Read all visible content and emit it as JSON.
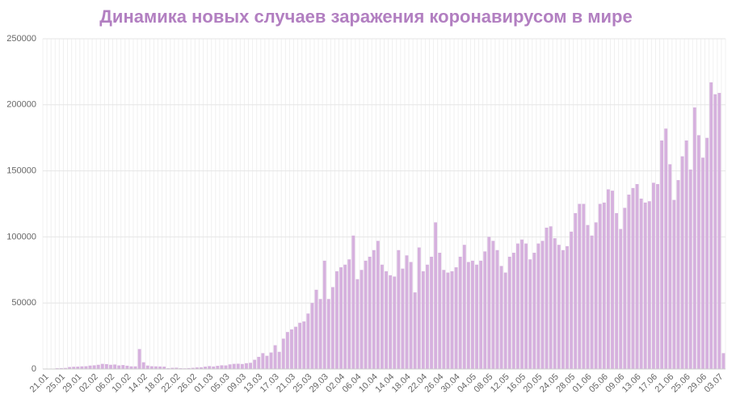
{
  "chart_data": {
    "type": "bar",
    "title": "Динамика новых случаев заражения коронавирусом в мире",
    "color": "#d6b1de",
    "ylim": [
      0,
      250000
    ],
    "yticks": [
      0,
      50000,
      100000,
      150000,
      200000,
      250000
    ],
    "grid": true,
    "categories": [
      "21.01",
      null,
      null,
      null,
      "25.01",
      null,
      null,
      null,
      "29.01",
      null,
      null,
      null,
      "02.02",
      null,
      null,
      null,
      "06.02",
      null,
      null,
      null,
      "10.02",
      null,
      null,
      null,
      "14.02",
      null,
      null,
      null,
      "18.02",
      null,
      null,
      null,
      "22.02",
      null,
      null,
      null,
      "26.02",
      null,
      null,
      null,
      "01.03",
      null,
      null,
      null,
      "05.03",
      null,
      null,
      null,
      "09.03",
      null,
      null,
      null,
      "13.03",
      null,
      null,
      null,
      "17.03",
      null,
      null,
      null,
      "21.03",
      null,
      null,
      null,
      "25.03",
      null,
      null,
      null,
      "29.03",
      null,
      null,
      null,
      "02.04",
      null,
      null,
      null,
      "06.04",
      null,
      null,
      null,
      "10.04",
      null,
      null,
      null,
      "14.04",
      null,
      null,
      null,
      "18.04",
      null,
      null,
      null,
      "22.04",
      null,
      null,
      null,
      "26.04",
      null,
      null,
      null,
      "30.04",
      null,
      null,
      null,
      "04.05",
      null,
      null,
      null,
      "08.05",
      null,
      null,
      null,
      "12.05",
      null,
      null,
      null,
      "16.05",
      null,
      null,
      null,
      "20.05",
      null,
      null,
      null,
      "24.05",
      null,
      null,
      null,
      "28.05",
      null,
      null,
      null,
      "01.06",
      null,
      null,
      null,
      "05.06",
      null,
      null,
      null,
      "09.06",
      null,
      null,
      null,
      "13.06",
      null,
      null,
      null,
      "17.06",
      null,
      null,
      null,
      "21.06",
      null,
      null,
      null,
      "25.06",
      null,
      null,
      null,
      "29.06",
      null,
      null,
      null,
      "03.07",
      null
    ],
    "values": [
      300,
      200,
      300,
      600,
      700,
      800,
      1500,
      1700,
      1800,
      2000,
      2100,
      2600,
      2800,
      3200,
      3900,
      3700,
      3200,
      3400,
      2700,
      3000,
      2500,
      2000,
      2000,
      15100,
      5100,
      2600,
      2100,
      2000,
      1900,
      1800,
      600,
      900,
      1000,
      600,
      500,
      700,
      900,
      1200,
      1300,
      1800,
      2200,
      1900,
      2400,
      2800,
      2700,
      3500,
      3900,
      4000,
      3800,
      4400,
      4700,
      7000,
      9200,
      12000,
      10000,
      12500,
      18000,
      13000,
      23000,
      28000,
      30000,
      32000,
      35000,
      36000,
      42000,
      50000,
      60000,
      53000,
      82000,
      53000,
      62000,
      74000,
      77000,
      79000,
      83000,
      101000,
      68000,
      75000,
      82000,
      85000,
      90000,
      97000,
      79000,
      74000,
      71000,
      70000,
      90000,
      76000,
      86000,
      81000,
      58000,
      92000,
      74000,
      79000,
      85000,
      111000,
      88000,
      75000,
      73000,
      74000,
      77000,
      85000,
      94000,
      81000,
      82000,
      79000,
      82000,
      89000,
      100000,
      97000,
      90000,
      78000,
      73000,
      85000,
      88000,
      95000,
      98000,
      95000,
      83000,
      88000,
      95000,
      97000,
      107000,
      108000,
      99000,
      94000,
      90000,
      93000,
      104000,
      118000,
      125000,
      125000,
      109000,
      101000,
      111000,
      125000,
      126000,
      136000,
      135000,
      118000,
      106000,
      122000,
      132000,
      137000,
      140000,
      129000,
      126000,
      127000,
      141000,
      140000,
      173000,
      182000,
      155000,
      128000,
      143000,
      161000,
      173000,
      151000,
      198000,
      177000,
      160000,
      175000,
      217000,
      208000,
      209000,
      12000
    ]
  }
}
